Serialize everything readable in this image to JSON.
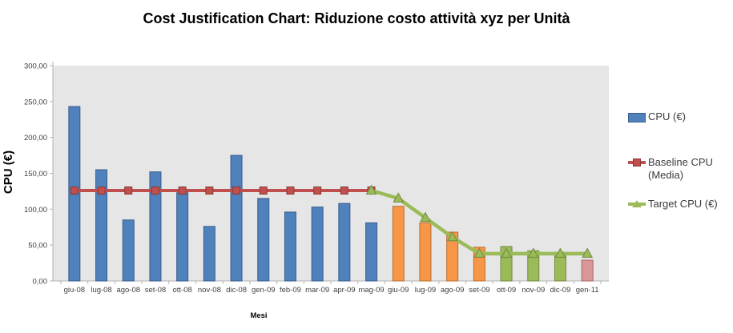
{
  "title": {
    "text": "Cost Justification Chart: Riduzione costo attività xyz per Unità"
  },
  "y_axis": {
    "title": "CPU (€)",
    "tick_labels": [
      "300,00",
      "250,00",
      "200,00",
      "150,00",
      "100,00",
      "50,00",
      "0,00"
    ]
  },
  "x_axis": {
    "title": "Mesi"
  },
  "legend": {
    "position": "right",
    "items": [
      {
        "label": "CPU (€)",
        "swatch": "bar",
        "color": "#4f81bd"
      },
      {
        "label": "Baseline CPU (Media)",
        "swatch": "line-square",
        "color": "#c0504d"
      },
      {
        "label": "Target  CPU (€)",
        "swatch": "line-triangle",
        "color": "#9bbb59"
      }
    ]
  },
  "chart_data": {
    "type": "bar",
    "subtype": "bar-line-combo",
    "title": "Cost Justification Chart: Riduzione costo attività xyz per Unità",
    "xlabel": "Mesi",
    "ylabel": "CPU (€)",
    "ylim": [
      0,
      300
    ],
    "y_tick_step": 50,
    "grid": false,
    "plot_bg": "#e6e6e6",
    "legend_position": "right",
    "categories": [
      "giu-08",
      "lug-08",
      "ago-08",
      "set-08",
      "ott-08",
      "nov-08",
      "dic-08",
      "gen-09",
      "feb-09",
      "mar-09",
      "apr-09",
      "mag-09",
      "giu-09",
      "lug-09",
      "ago-09",
      "set-09",
      "ott-09",
      "nov-09",
      "dic-09",
      "gen-11"
    ],
    "series": [
      {
        "name": "CPU (€)",
        "type": "bar",
        "values": [
          243,
          155,
          85,
          152,
          123,
          76,
          175,
          115,
          96,
          103,
          108,
          81,
          104,
          81,
          68,
          47,
          48,
          42,
          40,
          29
        ],
        "bar_colors": [
          "#4f81bd",
          "#4f81bd",
          "#4f81bd",
          "#4f81bd",
          "#4f81bd",
          "#4f81bd",
          "#4f81bd",
          "#4f81bd",
          "#4f81bd",
          "#4f81bd",
          "#4f81bd",
          "#4f81bd",
          "#f79646",
          "#f79646",
          "#f79646",
          "#f79646",
          "#9bbb59",
          "#9bbb59",
          "#9bbb59",
          "#d99694"
        ]
      },
      {
        "name": "Baseline CPU (Media)",
        "type": "line",
        "marker": "square",
        "color": "#c0504d",
        "values": [
          126,
          126,
          126,
          126,
          126,
          126,
          126,
          126,
          126,
          126,
          126,
          126,
          null,
          null,
          null,
          null,
          null,
          null,
          null,
          null
        ]
      },
      {
        "name": "Target CPU (€)",
        "type": "line",
        "marker": "triangle",
        "color": "#9bbb59",
        "values": [
          null,
          null,
          null,
          null,
          null,
          null,
          null,
          null,
          null,
          null,
          null,
          126,
          115,
          88,
          61,
          38,
          38,
          38,
          38,
          38
        ]
      }
    ]
  }
}
